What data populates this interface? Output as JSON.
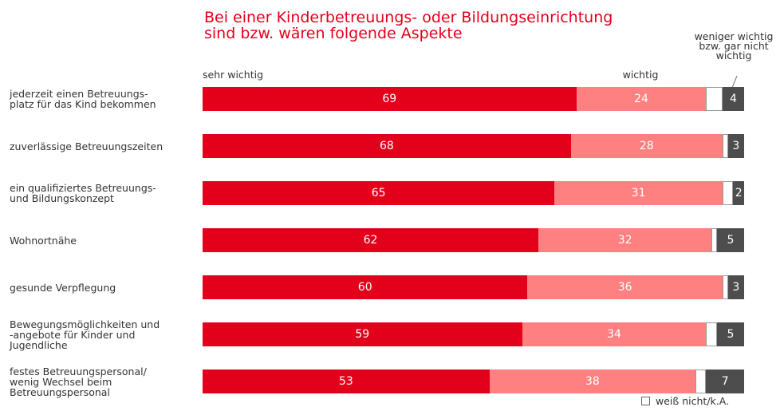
{
  "chart_data": {
    "type": "stacked_bar_horizontal",
    "title": "Bei einer Kinderbetreuungs- oder Bildungseinrichtung\nsind bzw. wären folgende Aspekte",
    "categories": [
      "jederzeit einen Betreuungs-\nplatz für das Kind bekommen",
      "zuverlässige Betreuungszeiten",
      "ein qualifiziertes Betreuungs-\nund Bildungskonzept",
      "Wohnortnähe",
      "gesunde Verpflegung",
      "Bewegungsmöglichkeiten und\n-angebote für Kinder und\nJugendliche",
      "festes Betreuungspersonal/\nwenig Wechsel beim\nBetreuungspersonal"
    ],
    "xlim": [
      0,
      100
    ],
    "series": [
      {
        "name": "sehr wichtig",
        "color": "#e2001a",
        "labels": true,
        "values": [
          69,
          68,
          65,
          62,
          60,
          59,
          53
        ]
      },
      {
        "name": "wichtig",
        "color": "#ff8080",
        "labels": true,
        "values": [
          24,
          28,
          31,
          32,
          36,
          34,
          38
        ]
      },
      {
        "name": "weiß nicht/k.A.",
        "color": "#ffffff",
        "labels": false,
        "values": [
          3,
          1,
          2,
          1,
          1,
          2,
          2
        ]
      },
      {
        "name": "weniger wichtig\nbzw. gar nicht\nwichtig",
        "color": "#4d4d4d",
        "labels": true,
        "values": [
          4,
          3,
          2,
          5,
          3,
          5,
          7
        ]
      }
    ]
  }
}
